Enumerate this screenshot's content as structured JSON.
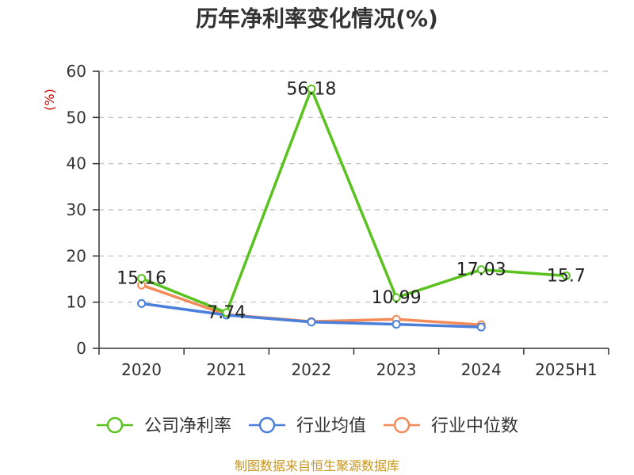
{
  "chart_data": {
    "type": "line",
    "title": "历年净利率变化情况(%)",
    "ylabel": "(%)",
    "xlabel": "",
    "ylim": [
      0,
      60
    ],
    "yticks": [
      0,
      10,
      20,
      30,
      40,
      50,
      60
    ],
    "categories": [
      "2020",
      "2021",
      "2022",
      "2023",
      "2024",
      "2025H1"
    ],
    "grid": true,
    "legend_position": "bottom",
    "series": [
      {
        "name": "公司净利率",
        "color": "#5ac21f",
        "values": [
          15.16,
          7.74,
          56.18,
          10.99,
          17.03,
          15.7
        ],
        "labels": [
          "15.16",
          "7.74",
          "56.18",
          "10.99",
          "17.03",
          "15.7"
        ]
      },
      {
        "name": "行业均值",
        "color": "#4a7fdb",
        "values": [
          9.7,
          7.2,
          5.7,
          5.2,
          4.6,
          null
        ]
      },
      {
        "name": "行业中位数",
        "color": "#f28b59",
        "values": [
          13.7,
          7.3,
          5.8,
          6.3,
          5.1,
          null
        ]
      }
    ]
  },
  "source": "制图数据来自恒生聚源数据库",
  "colors": {
    "unit": "#cc0000",
    "source": "#c8961e",
    "grid": "#bbbbbb",
    "axis": "#333333"
  }
}
